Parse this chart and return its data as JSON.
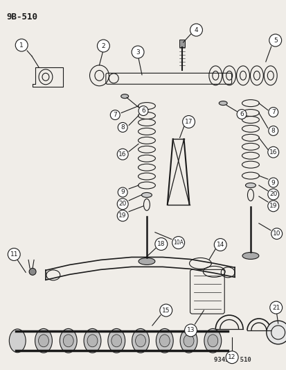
{
  "title": "9B-510",
  "bg_color": "#f0ede8",
  "line_color": "#1a1a1a",
  "label_color": "#1a1a1a",
  "watermark": "93456  510",
  "figsize": [
    4.14,
    5.33
  ],
  "dpi": 100
}
